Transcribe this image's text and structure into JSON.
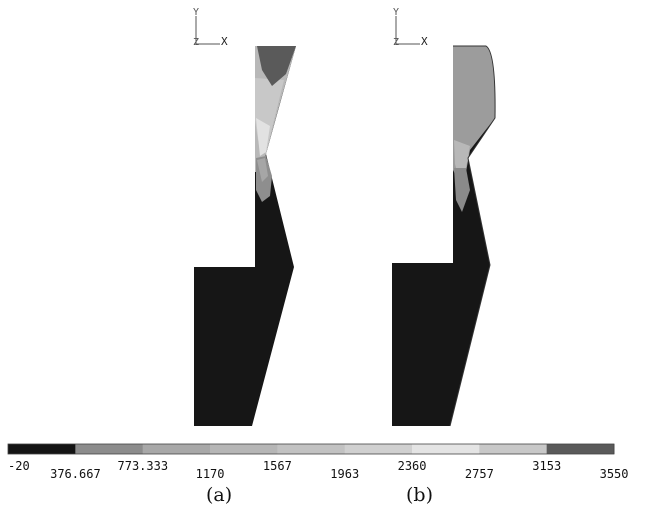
{
  "panel_a": {
    "caption": "(a)",
    "triad": {
      "y_label": "Y",
      "z_label": "Z",
      "x_label": "X"
    }
  },
  "panel_b": {
    "caption": "(b)",
    "triad": {
      "y_label": "Y",
      "z_label": "Z",
      "x_label": "X"
    }
  },
  "legend": {
    "colors": [
      "#141414",
      "#8c8c8c",
      "#a8a8a8",
      "#b6b6b6",
      "#c2c2c2",
      "#d0d0d0",
      "#e4e4e4",
      "#c8c8c8",
      "#5a5a5a"
    ],
    "tick_labels": [
      "-20",
      "376.667",
      "773.333",
      "1170",
      "1567",
      "1963",
      "2360",
      "2757",
      "3153",
      "3550"
    ]
  }
}
